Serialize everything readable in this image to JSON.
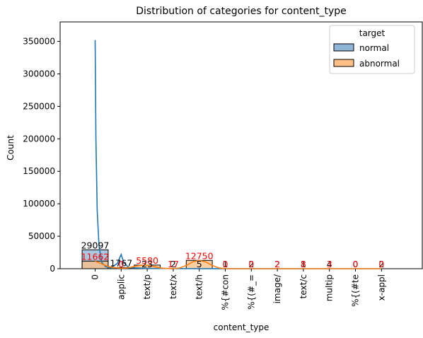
{
  "chart_data": {
    "type": "bar",
    "title": "Distribution of categories for content_type",
    "xlabel": "content_type",
    "ylabel": "Count",
    "ylim": [
      0,
      380000
    ],
    "yticks": [
      0,
      50000,
      100000,
      150000,
      200000,
      250000,
      300000,
      350000
    ],
    "categories": [
      "0",
      "applic",
      "text/p",
      "text/x",
      "text/h",
      "%{#con",
      "%{(#_=",
      "image/",
      "text/c",
      "multip",
      "%{(#te",
      "x-appl"
    ],
    "legend": {
      "title": "target",
      "position": "top-right",
      "entries": [
        "normal",
        "abnormal"
      ]
    },
    "series": [
      {
        "name": "normal",
        "color": "#1f77b4",
        "fill": "#8fb5d7",
        "values": [
          29097,
          1767,
          23,
          2,
          5,
          1,
          2,
          2,
          1,
          4,
          0,
          2
        ],
        "labels": [
          "29097",
          "1767",
          "23",
          "2",
          "5",
          "1",
          "2",
          "2",
          "1",
          "4",
          "0",
          "2"
        ],
        "label_color": "#000000",
        "kde": [
          [
            0.0,
            352000
          ],
          [
            0.03,
            200000
          ],
          [
            0.08,
            90000
          ],
          [
            0.15,
            35000
          ],
          [
            0.25,
            10000
          ],
          [
            0.4,
            3000
          ],
          [
            0.6,
            1500
          ],
          [
            0.85,
            8000
          ],
          [
            1.0,
            22000
          ],
          [
            1.1,
            9000
          ],
          [
            1.3,
            1500
          ],
          [
            2.0,
            400
          ],
          [
            4.0,
            100
          ],
          [
            8.0,
            40
          ],
          [
            11.0,
            20
          ]
        ]
      },
      {
        "name": "abnormal",
        "color": "#ff7f0e",
        "fill": "#ffbf86",
        "values": [
          11662,
          0,
          5580,
          17,
          12750,
          0,
          0,
          2,
          8,
          3,
          0,
          0
        ],
        "labels": [
          "11662",
          "0",
          "5580",
          "17",
          "12750",
          "0",
          "0",
          "2",
          "8",
          "3",
          "0",
          "0"
        ],
        "label_color": "#ff0000",
        "kde": [
          [
            0.0,
            11500
          ],
          [
            0.25,
            7500
          ],
          [
            0.5,
            3500
          ],
          [
            0.75,
            1500
          ],
          [
            1.0,
            600
          ],
          [
            1.25,
            1200
          ],
          [
            1.5,
            3500
          ],
          [
            1.75,
            5200
          ],
          [
            2.0,
            5600
          ],
          [
            2.25,
            3500
          ],
          [
            2.5,
            1200
          ],
          [
            2.75,
            300
          ],
          [
            3.0,
            100
          ],
          [
            3.25,
            1200
          ],
          [
            3.5,
            5000
          ],
          [
            3.75,
            10500
          ],
          [
            4.0,
            12750
          ],
          [
            4.25,
            10500
          ],
          [
            4.5,
            5000
          ],
          [
            4.75,
            1200
          ],
          [
            5.0,
            80
          ],
          [
            6.0,
            20
          ],
          [
            8.0,
            30
          ],
          [
            11.0,
            0
          ]
        ]
      }
    ]
  }
}
